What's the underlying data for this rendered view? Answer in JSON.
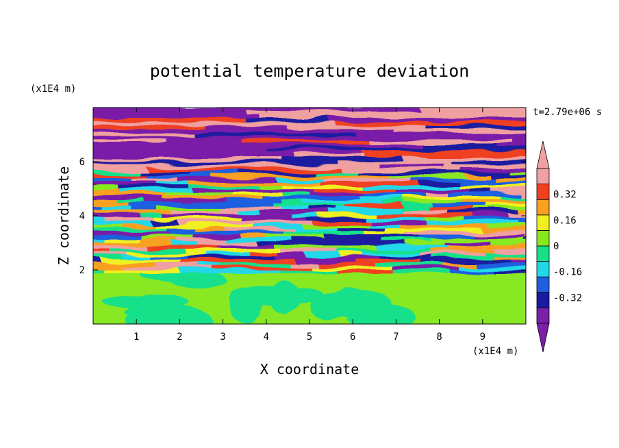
{
  "chart_data": {
    "type": "heatmap",
    "title": "potential temperature deviation",
    "xlabel": "X coordinate",
    "ylabel": "Z coordinate",
    "x_unit": "(x1E4 m)",
    "y_unit": "(x1E4 m)",
    "time_label": "t=2.79e+06 s",
    "xlim": [
      0,
      10
    ],
    "ylim": [
      0,
      8
    ],
    "x_ticks": [
      "1",
      "2",
      "3",
      "4",
      "5",
      "6",
      "7",
      "8",
      "9"
    ],
    "y_ticks": [
      "2",
      "4",
      "6"
    ],
    "colorbar": {
      "levels": [
        -0.48,
        -0.4,
        -0.32,
        -0.24,
        -0.16,
        -0.08,
        0,
        0.08,
        0.16,
        0.24,
        0.32,
        0.4,
        0.48
      ],
      "colors": [
        "#7a1fa8",
        "#1a1aa0",
        "#1f5fe0",
        "#20d8e8",
        "#18e08a",
        "#88e820",
        "#f0f020",
        "#f8a020",
        "#f04020",
        "#f0a0a0"
      ],
      "under_color": "#7a1fa8",
      "over_color": "#f0a0a0",
      "tick_labels": [
        "0.32",
        "0.16",
        "0",
        "-0.16",
        "-0.32"
      ],
      "tick_values": [
        0.32,
        0.16,
        0,
        -0.16,
        -0.32
      ]
    },
    "regions": [
      {
        "z_range": [
          0,
          1.9
        ],
        "description_values": [
          0,
          0.08
        ],
        "pattern": "smooth"
      },
      {
        "z_range": [
          1.9,
          5.6
        ],
        "description_values": [
          -0.48,
          0.48
        ],
        "pattern": "mixed"
      },
      {
        "z_range": [
          5.6,
          8.0
        ],
        "description_values": [
          -0.48,
          0.48
        ],
        "pattern": "banded"
      }
    ]
  }
}
